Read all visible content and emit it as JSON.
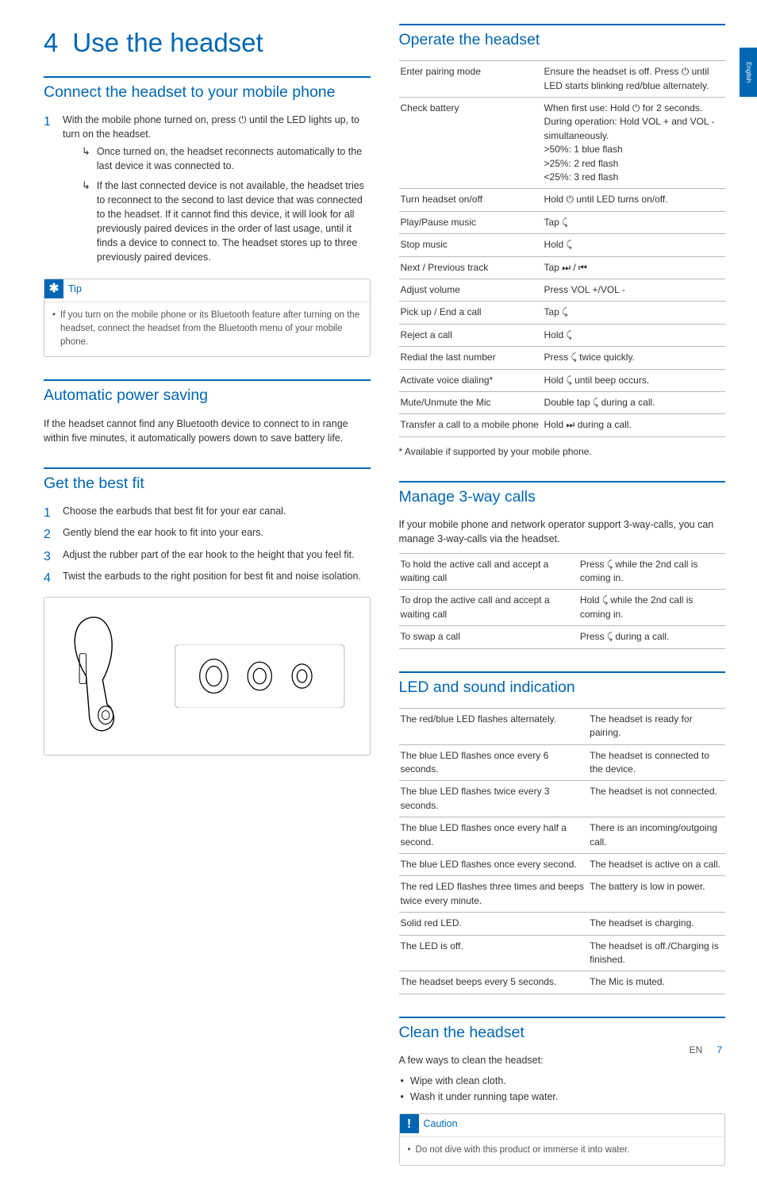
{
  "page": {
    "lang_tab": "English",
    "footer_lang": "EN",
    "footer_page": "7"
  },
  "chapter": {
    "number": "4",
    "title": "Use the headset"
  },
  "col1": {
    "connect": {
      "title": "Connect the headset to your mobile phone",
      "step1_num": "1",
      "step1": "With the mobile phone turned on, press ⏻ until the LED lights up, to turn on the headset.",
      "sub1": "Once turned on, the headset reconnects automatically to the last device it was connected to.",
      "sub2": "If the last connected device is not available, the headset tries to reconnect to the second to last device that was connected to the headset. If it cannot find this device, it will look for all previously paired devices in the order of last usage, until it finds a device to connect to. The headset stores up to three previously paired devices.",
      "tip_label": "Tip",
      "tip_body": "If you turn on the mobile phone or its Bluetooth feature after turning on the headset, connect the headset from the Bluetooth menu of your mobile phone."
    },
    "autopower": {
      "title": "Automatic power saving",
      "body": "If the headset cannot find any Bluetooth device to connect to in range within five minutes, it automatically powers down to save battery life."
    },
    "fit": {
      "title": "Get the best fit",
      "steps": [
        {
          "n": "1",
          "t": "Choose the earbuds that best fit for your ear canal."
        },
        {
          "n": "2",
          "t": "Gently blend the ear hook to fit into your ears."
        },
        {
          "n": "3",
          "t": "Adjust the rubber part of the ear hook to the height that you feel fit."
        },
        {
          "n": "4",
          "t": "Twist the earbuds to the right position for best fit and noise isolation."
        }
      ]
    }
  },
  "col2": {
    "operate": {
      "title": "Operate the headset",
      "rows": [
        [
          "Enter pairing mode",
          "Ensure the headset is off. Press ⏻ until LED starts blinking red/blue alternately."
        ],
        [
          "Check battery",
          "When first use: Hold ⏻ for 2 seconds. During operation: Hold VOL + and VOL - simultaneously.\n>50%: 1 blue flash\n>25%: 2 red flash\n<25%: 3 red flash"
        ],
        [
          "Turn headset on/off",
          "Hold ⏻ until LED turns on/off."
        ],
        [
          "Play/Pause music",
          "Tap ⤹"
        ],
        [
          "Stop music",
          "Hold ⤹"
        ],
        [
          "Next / Previous track",
          "Tap ⏭ / ⏮"
        ],
        [
          "Adjust volume",
          "Press VOL +/VOL -"
        ],
        [
          "Pick up / End a call",
          "Tap ⤹"
        ],
        [
          "Reject a call",
          "Hold ⤹"
        ],
        [
          "Redial the last number",
          "Press ⤹ twice quickly."
        ],
        [
          "Activate voice dialing*",
          "Hold ⤹ until beep occurs."
        ],
        [
          "Mute/Unmute the Mic",
          "Double tap ⤹ during a call."
        ],
        [
          "Transfer a call to a mobile phone",
          "Hold ⏭ during a call."
        ]
      ],
      "note": "* Available if supported by your mobile phone."
    },
    "threeway": {
      "title": "Manage 3-way calls",
      "intro": "If your mobile phone and network operator support 3-way-calls, you can manage 3-way-calls via the headset.",
      "rows": [
        [
          "To hold the active call and accept a waiting call",
          "Press ⤹ while the 2nd call is coming in."
        ],
        [
          "To drop the active call and accept a waiting call",
          "Hold ⤹ while the 2nd call is coming in."
        ],
        [
          "To swap a call",
          "Press ⤹ during a call."
        ]
      ]
    },
    "led": {
      "title": "LED and sound indication",
      "rows": [
        [
          "The red/blue LED flashes alternately.",
          "The headset is ready for pairing."
        ],
        [
          "The blue LED flashes once every 6 seconds.",
          "The headset is connected to the device."
        ],
        [
          "The blue LED flashes twice every 3 seconds.",
          "The headset is not connected."
        ],
        [
          "The blue LED flashes once every half a second.",
          "There is an incoming/outgoing call."
        ],
        [
          "The blue LED flashes once every second.",
          "The headset is active on a call."
        ],
        [
          "The red LED flashes three times and beeps twice every minute.",
          "The battery is low in power."
        ],
        [
          "Solid red LED.",
          "The headset is charging."
        ],
        [
          "The LED is off.",
          "The headset is off./Charging is finished."
        ],
        [
          "The headset beeps every 5 seconds.",
          "The Mic is muted."
        ]
      ]
    },
    "clean": {
      "title": "Clean the headset",
      "intro": "A few ways to clean the headset:",
      "b1": "Wipe with clean cloth.",
      "b2": "Wash it under running tape water.",
      "caution_label": "Caution",
      "caution_body": "Do not dive with this product or immerse it into water."
    }
  }
}
